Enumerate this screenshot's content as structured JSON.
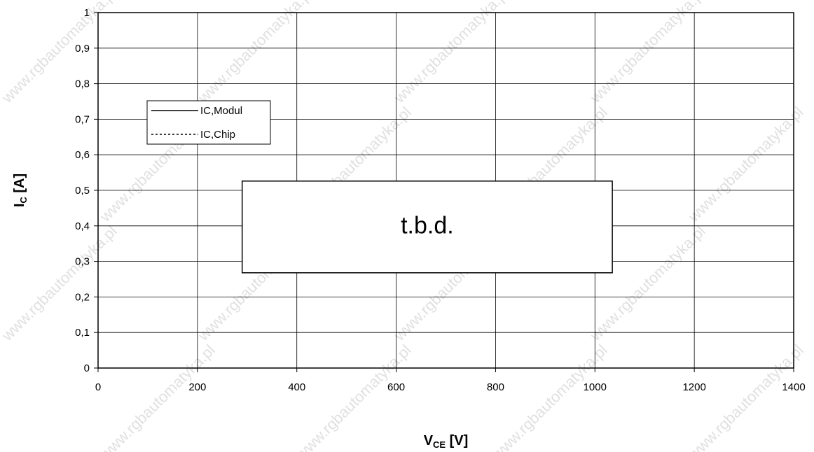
{
  "chart_data": {
    "type": "line",
    "title": "",
    "xlabel": {
      "main": "V",
      "sub": "CE",
      "unit": " [V]"
    },
    "ylabel": {
      "main": "I",
      "sub": "C",
      "unit": " [A]"
    },
    "xlim": [
      0,
      1400
    ],
    "ylim": [
      0,
      1
    ],
    "x_ticks": [
      0,
      200,
      400,
      600,
      800,
      1000,
      1200,
      1400
    ],
    "x_tick_labels": [
      "0",
      "200",
      "400",
      "600",
      "800",
      "1000",
      "1200",
      "1400"
    ],
    "y_ticks": [
      0,
      0.1,
      0.2,
      0.3,
      0.4,
      0.5,
      0.6,
      0.7,
      0.8,
      0.9,
      1
    ],
    "y_tick_labels": [
      "0",
      "0,1",
      "0,2",
      "0,3",
      "0,4",
      "0,5",
      "0,6",
      "0,7",
      "0,8",
      "0,9",
      "1"
    ],
    "grid": true,
    "legend_placement": "top-left",
    "series": [
      {
        "name": "IC,Modul",
        "style": "solid",
        "color": "#000000",
        "x": [],
        "y": []
      },
      {
        "name": "IC,Chip",
        "style": "dotted",
        "color": "#000000",
        "x": [],
        "y": []
      }
    ],
    "annotation": {
      "text": "t.b.d.",
      "x_range": [
        290,
        1035
      ],
      "y_range": [
        0.268,
        0.526
      ]
    }
  },
  "watermark": {
    "text": "www.rgbautomatyka.pl",
    "color": "#c8c8c8"
  }
}
